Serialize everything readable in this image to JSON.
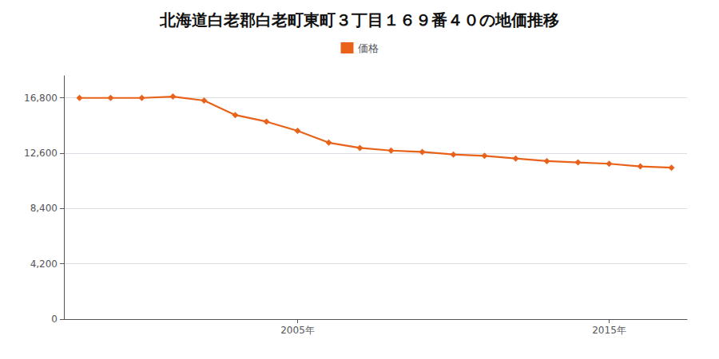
{
  "chart_data": {
    "type": "line",
    "title": "北海道白老郡白老町東町３丁目１６９番４０の地価推移",
    "x": [
      1998,
      1999,
      2000,
      2001,
      2002,
      2003,
      2004,
      2005,
      2006,
      2007,
      2008,
      2009,
      2010,
      2011,
      2012,
      2013,
      2014,
      2015,
      2016,
      2017
    ],
    "series": [
      {
        "name": "価格",
        "color": "#E8621A",
        "marker": "diamond",
        "values": [
          16800,
          16800,
          16800,
          16900,
          16600,
          15500,
          15000,
          14300,
          13400,
          13000,
          12800,
          12700,
          12500,
          12400,
          12200,
          12000,
          11900,
          11800,
          11600,
          11500
        ]
      }
    ],
    "xlim": [
      1997.5,
      2017.5
    ],
    "xticks": [
      {
        "value": 2005,
        "label": "2005年"
      },
      {
        "value": 2015,
        "label": "2015年"
      }
    ],
    "ylim": [
      0,
      18480
    ],
    "yticks": [
      0,
      {
        "value": 4200,
        "label": "4,200"
      },
      {
        "value": 8400,
        "label": "8,400"
      },
      {
        "value": 12600,
        "label": "12,600"
      },
      {
        "value": 16800,
        "label": "16,800"
      }
    ],
    "grid": true,
    "legend": "top"
  }
}
